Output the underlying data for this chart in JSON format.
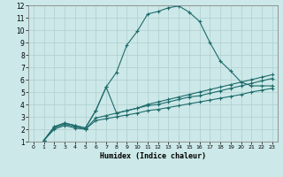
{
  "xlabel": "Humidex (Indice chaleur)",
  "xlim": [
    -0.5,
    23.5
  ],
  "ylim": [
    1,
    12
  ],
  "xticks": [
    0,
    1,
    2,
    3,
    4,
    5,
    6,
    7,
    8,
    9,
    10,
    11,
    12,
    13,
    14,
    15,
    16,
    17,
    18,
    19,
    20,
    21,
    22,
    23
  ],
  "yticks": [
    1,
    2,
    3,
    4,
    5,
    6,
    7,
    8,
    9,
    10,
    11,
    12
  ],
  "bg_color": "#cce8e8",
  "line_color": "#1e6b6b",
  "grid_color": "#b0cfcf",
  "series": [
    {
      "x": [
        1,
        2,
        3,
        4,
        5,
        6,
        7,
        8,
        9,
        10,
        11,
        12,
        13,
        14,
        15,
        16,
        17,
        18,
        19,
        20,
        21,
        22,
        23
      ],
      "y": [
        1.1,
        2.2,
        2.5,
        2.3,
        2.1,
        3.5,
        5.4,
        6.6,
        8.8,
        9.9,
        11.3,
        11.5,
        11.8,
        11.95,
        11.45,
        10.7,
        9.0,
        7.5,
        6.7,
        5.8,
        5.5,
        5.5,
        5.5
      ]
    },
    {
      "x": [
        1,
        2,
        3,
        4,
        5,
        6,
        7,
        8,
        9,
        10,
        11,
        12,
        13,
        14,
        15,
        16,
        17,
        18,
        19,
        20,
        21,
        22,
        23
      ],
      "y": [
        1.1,
        2.2,
        2.5,
        2.3,
        2.1,
        3.5,
        5.4,
        3.3,
        3.5,
        3.7,
        4.0,
        4.2,
        4.4,
        4.6,
        4.8,
        5.0,
        5.2,
        5.4,
        5.6,
        5.8,
        6.0,
        6.2,
        6.4
      ]
    },
    {
      "x": [
        1,
        2,
        3,
        4,
        5,
        6,
        7,
        8,
        9,
        10,
        11,
        12,
        13,
        14,
        15,
        16,
        17,
        18,
        19,
        20,
        21,
        22,
        23
      ],
      "y": [
        1.1,
        2.1,
        2.4,
        2.2,
        2.0,
        2.9,
        3.1,
        3.3,
        3.5,
        3.7,
        3.9,
        4.0,
        4.2,
        4.4,
        4.6,
        4.7,
        4.9,
        5.1,
        5.3,
        5.5,
        5.7,
        5.9,
        6.1
      ]
    },
    {
      "x": [
        1,
        2,
        3,
        4,
        5,
        6,
        7,
        8,
        9,
        10,
        11,
        12,
        13,
        14,
        15,
        16,
        17,
        18,
        19,
        20,
        21,
        22,
        23
      ],
      "y": [
        1.1,
        2.0,
        2.3,
        2.1,
        2.0,
        2.7,
        2.85,
        3.0,
        3.15,
        3.3,
        3.5,
        3.6,
        3.75,
        3.9,
        4.05,
        4.2,
        4.35,
        4.5,
        4.65,
        4.8,
        5.0,
        5.15,
        5.3
      ]
    }
  ]
}
